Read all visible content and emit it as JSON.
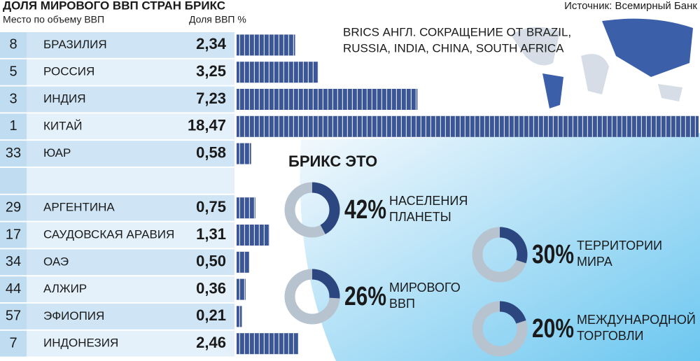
{
  "title": "ДОЛЯ МИРОВОГО ВВП СТРАН БРИКС",
  "source": "Источник: Всемирный Банк",
  "note": [
    "BRICS  АНГЛ. СОКРАЩЕНИЕ ОТ BRAZIL,",
    "RUSSIA, INDIA, CHINA, SOUTH AFRICA"
  ],
  "chart_data": [
    {
      "type": "bar",
      "rank_header": "Место по объему ВВП",
      "value_header": "Доля ВВП %",
      "ranks": [
        "8",
        "5",
        "3",
        "1",
        "33",
        null,
        "29",
        "17",
        "34",
        "44",
        "57",
        "7"
      ],
      "categories": [
        "БРАЗИЛИЯ",
        "РОССИЯ",
        "ИНДИЯ",
        "КИТАЙ",
        "ЮАР",
        null,
        "АРГЕНТИНА",
        "САУДОВСКАЯ АРАВИЯ",
        "ОАЭ",
        "АЛЖИР",
        "ЭФИОПИЯ",
        "ИНДОНЕЗИЯ"
      ],
      "values": [
        2.34,
        3.25,
        7.23,
        18.47,
        0.58,
        null,
        0.75,
        1.31,
        0.5,
        0.36,
        0.21,
        2.46
      ],
      "value_labels": [
        "2,34",
        "3,25",
        "7,23",
        "18,47",
        "0,58",
        null,
        "0,75",
        "1,31",
        "0,50",
        "0,36",
        "0,21",
        "2,46"
      ],
      "color": "#3b5696"
    },
    {
      "type": "donut",
      "title": "БРИКС ЭТО",
      "values": [
        42,
        30,
        26,
        20
      ],
      "value_labels": [
        "42%",
        "30%",
        "26%",
        "20%"
      ],
      "labels": [
        [
          "НАСЕЛЕНИЯ",
          "ПЛАНЕТЫ"
        ],
        [
          "ТЕРРИТОРИИ",
          "МИРА"
        ],
        [
          "МИРОВОГО",
          "ВВП"
        ],
        [
          "МЕЖДУНАРОДНОЙ",
          "ТОРГОВЛИ"
        ]
      ],
      "color": "#2c4680",
      "rest_color": "#b7c3cf"
    }
  ]
}
